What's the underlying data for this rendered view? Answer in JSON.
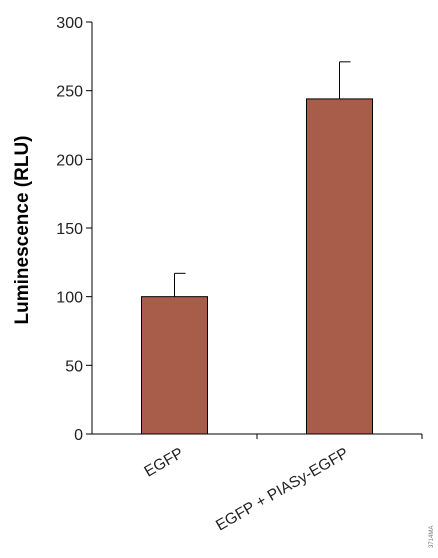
{
  "chart_data": {
    "type": "bar",
    "categories": [
      "EGFP",
      "EGFP + PIASy-EGFP"
    ],
    "values": [
      100,
      244
    ],
    "error": [
      17,
      27
    ],
    "ylabel": "Luminescence (RLU)",
    "xlabel": "",
    "ylim": [
      0,
      300
    ],
    "yticks": [
      "0",
      "50",
      "100",
      "150",
      "200",
      "250",
      "300"
    ],
    "bar_color": "#A85C4A",
    "bar_edge_color": "#000000",
    "grid": false,
    "legend": "none"
  },
  "watermark": "3714MA"
}
